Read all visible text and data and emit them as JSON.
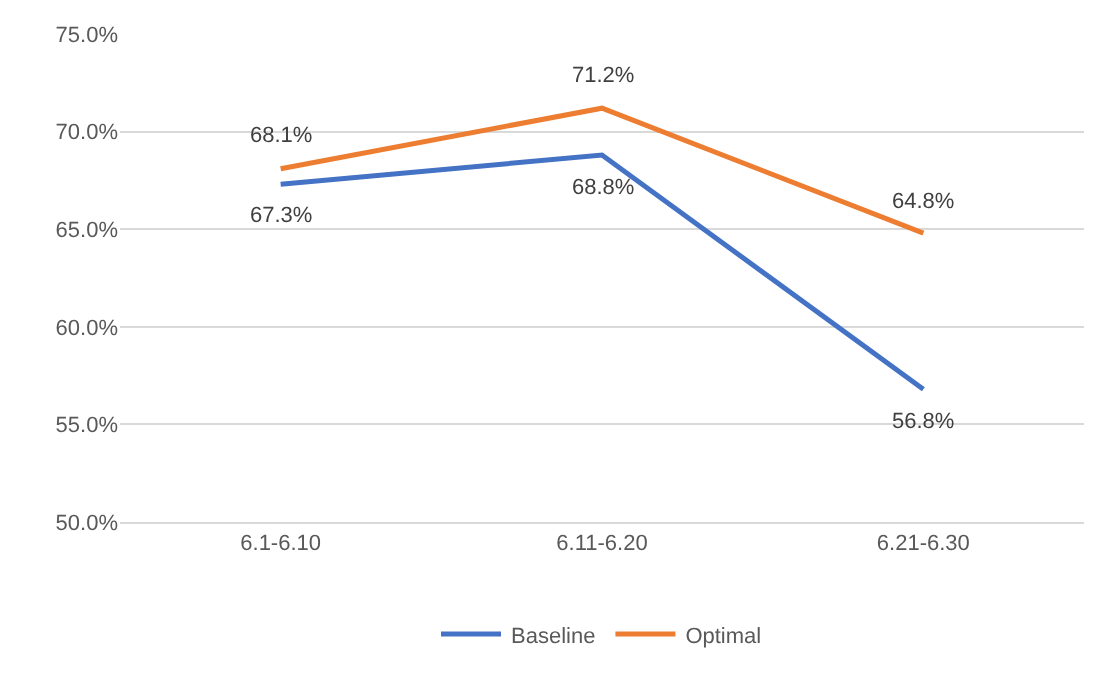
{
  "chart_data": {
    "type": "line",
    "categories": [
      "6.1-6.10",
      "6.11-6.20",
      "6.21-6.30"
    ],
    "series": [
      {
        "name": "Baseline",
        "color": "#4472c4",
        "values": [
          67.3,
          68.8,
          56.8
        ],
        "value_labels": [
          "67.3%",
          "68.8%",
          "56.8%"
        ]
      },
      {
        "name": "Optimal",
        "color": "#ed7d31",
        "values": [
          68.1,
          71.2,
          64.8
        ],
        "value_labels": [
          "68.1%",
          "71.2%",
          "64.8%"
        ]
      }
    ],
    "ylim": [
      50,
      75
    ],
    "yticks": [
      {
        "value": 50,
        "label": "50.0%"
      },
      {
        "value": 55,
        "label": "55.0%"
      },
      {
        "value": 60,
        "label": "60.0%"
      },
      {
        "value": 65,
        "label": "65.0%"
      },
      {
        "value": 70,
        "label": "70.0%"
      },
      {
        "value": 75,
        "label": "75.0%"
      }
    ],
    "grid": "y",
    "legend": "bottom",
    "marker": "none",
    "line_style": "solid"
  }
}
